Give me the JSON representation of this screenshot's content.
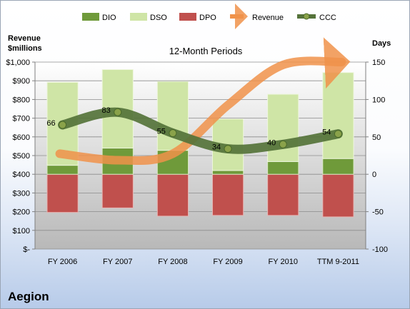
{
  "company": "Aegion",
  "chart_data": {
    "type": "bar",
    "title": "12-Month Periods",
    "categories": [
      "FY 2006",
      "FY 2007",
      "FY 2008",
      "FY 2009",
      "FY 2010",
      "TTM 9-2011"
    ],
    "left_axis": {
      "label_line1": "Revenue",
      "label_line2": "$millions",
      "ylim": [
        0,
        1000
      ],
      "ticks": [
        "$-",
        "$100",
        "$200",
        "$300",
        "$400",
        "$500",
        "$600",
        "$700",
        "$800",
        "$900",
        "$1,000"
      ]
    },
    "right_axis": {
      "label": "Days",
      "ylim": [
        -100,
        150
      ],
      "ticks": [
        "-100",
        "-50",
        "0",
        "50",
        "100",
        "150"
      ]
    },
    "series": [
      {
        "name": "DIO",
        "kind": "stacked-bar",
        "color": "#6f9a3a",
        "values": [
          12,
          35,
          32,
          5,
          17,
          21
        ]
      },
      {
        "name": "DSO",
        "kind": "stacked-bar",
        "color": "#cfe5a6",
        "values": [
          111,
          105,
          92,
          69,
          90,
          115
        ]
      },
      {
        "name": "DPO",
        "kind": "stacked-bar-negative",
        "color": "#c0504d",
        "values": [
          -51,
          -45,
          -56,
          -55,
          -55,
          -57
        ]
      },
      {
        "name": "Revenue",
        "kind": "line",
        "color": "#f0924a",
        "values": [
          510,
          475,
          510,
          770,
          985,
          1000
        ]
      },
      {
        "name": "CCC",
        "kind": "line",
        "color": "#55733a",
        "values": [
          66,
          83,
          55,
          34,
          40,
          54
        ],
        "data_labels": [
          "66",
          "83",
          "55",
          "34",
          "40",
          "54"
        ]
      }
    ],
    "legend_position": "top",
    "grid": true
  }
}
